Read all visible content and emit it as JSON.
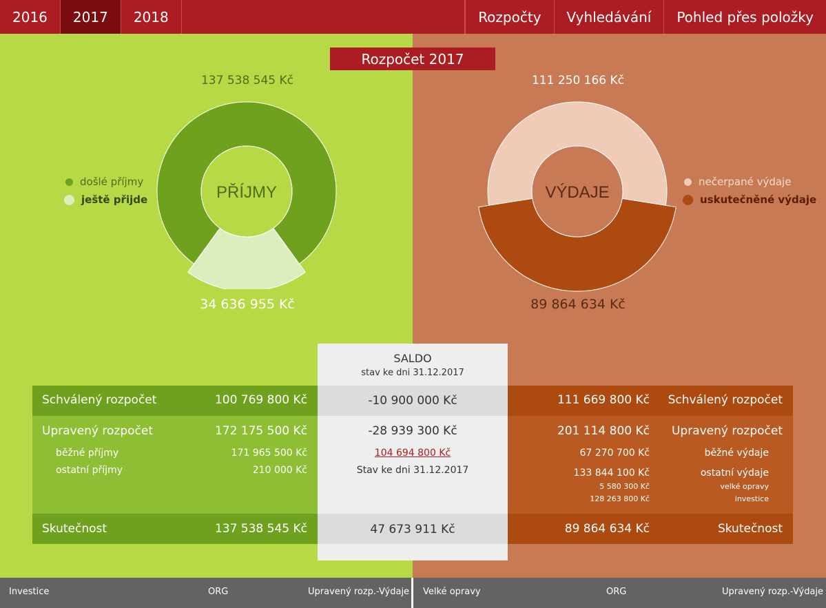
{
  "nav": {
    "years": [
      "2016",
      "2017",
      "2018"
    ],
    "active_year": "2017",
    "links": [
      "Rozpočty",
      "Vyhledávání",
      "Pohled přes položky"
    ]
  },
  "title": "Rozpočet 2017",
  "income": {
    "label": "PŘÍJMY",
    "top_amount": "137 538 545 Kč",
    "bottom_amount": "34 636 955 Kč",
    "legend": [
      "došlé příjmy",
      "ještě přijde"
    ],
    "chart_fraction_received": 0.8
  },
  "expense": {
    "label": "VÝDAJE",
    "top_amount": "111 250 166 Kč",
    "bottom_amount": "89 864 634 Kč",
    "legend": [
      "nečerpané výdaje",
      "uskutečněné výdaje"
    ],
    "chart_fraction_spent": 0.45
  },
  "saldo": {
    "title": "SALDO",
    "subtitle": "stav ke dni 31.12.2017",
    "approved": "-10 900 000 Kč",
    "adjusted": "-28 939 300 Kč",
    "balance_link": "104 694 800 Kč",
    "balance_note": "Stav ke dni 31.12.2017",
    "actual": "47 673 911 Kč"
  },
  "left_table": {
    "approved_label": "Schválený rozpočet",
    "approved_value": "100 769 800 Kč",
    "adjusted_label": "Upravený rozpočet",
    "adjusted_value": "172 175 500 Kč",
    "sub1_label": "běžné příjmy",
    "sub1_value": "171 965 500 Kč",
    "sub2_label": "ostatní příjmy",
    "sub2_value": "210 000 Kč",
    "actual_label": "Skutečnost",
    "actual_value": "137 538 545 Kč"
  },
  "right_table": {
    "approved_label": "Schválený rozpočet",
    "approved_value": "111 669 800 Kč",
    "adjusted_label": "Upravený rozpočet",
    "adjusted_value": "201 114 800 Kč",
    "sub1_label": "běžné výdaje",
    "sub1_value": "67 270 700 Kč",
    "sub2_label": "ostatní výdaje",
    "sub2_value": "133 844 100 Kč",
    "sub3_label": "velké opravy",
    "sub3_value": "5 580 300 Kč",
    "sub4_label": "investice",
    "sub4_value": "128 263 800 Kč",
    "actual_label": "Skutečnost",
    "actual_value": "89 864 634 Kč"
  },
  "footer": {
    "left": [
      "Investice",
      "ORG",
      "Upravený rozp.-Výdaje"
    ],
    "right": [
      "Velké opravy",
      "ORG",
      "Upravený rozp.-Výdaje"
    ]
  },
  "colors": {
    "brand_red": "#ab1d22",
    "income_bg": "#b7d945",
    "income_dark": "#6ea21e",
    "income_light": "#dcedbe",
    "expense_bg": "#c87a55",
    "expense_dark": "#ad4a10",
    "expense_light": "#f0cbb7"
  }
}
